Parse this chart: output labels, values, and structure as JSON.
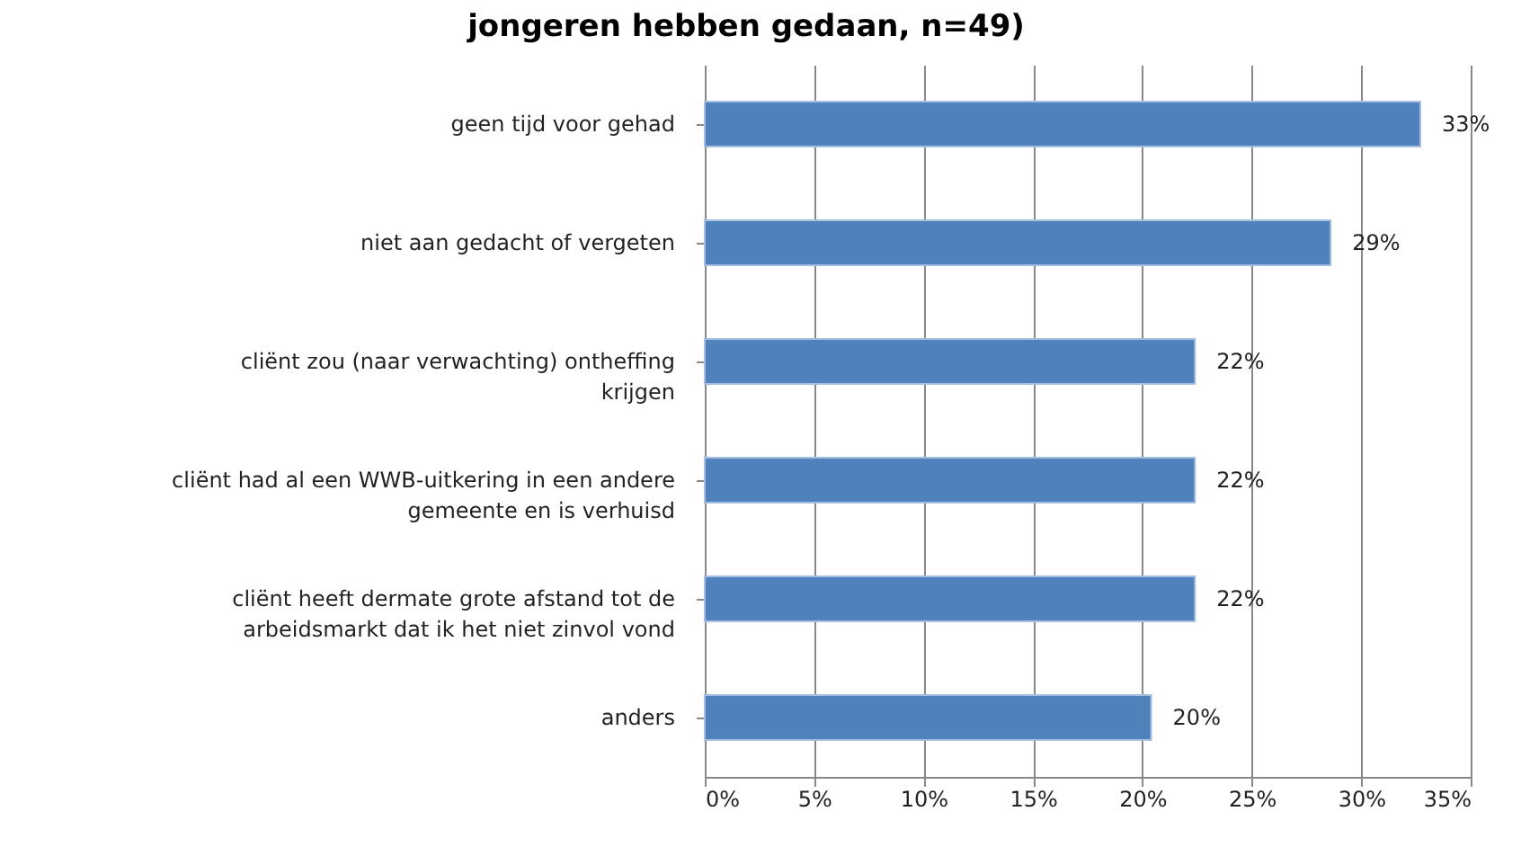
{
  "chart_data": {
    "type": "bar",
    "orientation": "horizontal",
    "title": "jongeren hebben gedaan, n=49)",
    "categories": [
      "geen tijd voor gehad",
      "niet aan gedacht of vergeten",
      "cliënt zou (naar verwachting) ontheffing krijgen",
      "cliënt had al een WWB-uitkering in een andere gemeente en is verhuisd",
      "cliënt heeft dermate grote afstand tot de arbeidsmarkt dat ik het niet zinvol vond",
      "anders"
    ],
    "values": [
      32.7,
      28.6,
      22.4,
      22.4,
      22.4,
      20.4
    ],
    "value_labels": [
      "33%",
      "29%",
      "22%",
      "22%",
      "22%",
      "20%"
    ],
    "color": "#4f81bd",
    "xlim": [
      0,
      35
    ],
    "xticks": [
      {
        "value": 0,
        "label": "0%"
      },
      {
        "value": 5,
        "label": "5%"
      },
      {
        "value": 10,
        "label": "10%"
      },
      {
        "value": 15,
        "label": "15%"
      },
      {
        "value": 20,
        "label": "20%"
      },
      {
        "value": 25,
        "label": "25%"
      },
      {
        "value": 30,
        "label": "30%"
      },
      {
        "value": 35,
        "label": "35%"
      }
    ],
    "grid": "x"
  }
}
